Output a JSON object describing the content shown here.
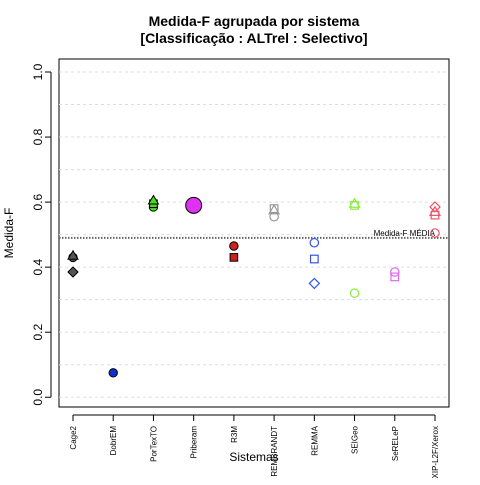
{
  "chart_data": {
    "type": "scatter",
    "title": "Medida-F agrupada por sistema",
    "subtitle": "[Classificação : ALTrel : Selectivo]",
    "xlabel": "Sistemas",
    "ylabel": "Medida-F",
    "ylim": [
      -0.03,
      1.04
    ],
    "yticks": [
      "0.0",
      "0.2",
      "0.4",
      "0.6",
      "0.8",
      "1.0"
    ],
    "grid": true,
    "categories": [
      "Cage2",
      "DobrEM",
      "PorTexTO",
      "Priberam",
      "R3M",
      "REMBRANDT",
      "REMMA",
      "SEIGeo",
      "SeRELeP",
      "XIP-L2F/Xerox"
    ],
    "reference_line": {
      "label": "Medida-F MÉDIA",
      "value": 0.49
    },
    "series": [
      {
        "category": "Cage2",
        "color": "#555555",
        "points": [
          {
            "y": 0.43,
            "shape": "circle",
            "filled": true
          },
          {
            "y": 0.435,
            "shape": "triangle",
            "filled": true
          },
          {
            "y": 0.385,
            "shape": "diamond",
            "filled": true
          }
        ]
      },
      {
        "category": "DobrEM",
        "color": "#1030c8",
        "points": [
          {
            "y": 0.075,
            "shape": "circle",
            "filled": true
          }
        ]
      },
      {
        "category": "PorTexTO",
        "color": "#44dd22",
        "points": [
          {
            "y": 0.585,
            "shape": "circle",
            "filled": true
          },
          {
            "y": 0.595,
            "shape": "square",
            "filled": true
          },
          {
            "y": 0.605,
            "shape": "triangle",
            "filled": true
          }
        ]
      },
      {
        "category": "Priberam",
        "color": "#dd33ee",
        "points": [
          {
            "y": 0.59,
            "shape": "circle",
            "filled": true,
            "size": "large"
          }
        ]
      },
      {
        "category": "R3M",
        "color": "#cc2222",
        "points": [
          {
            "y": 0.465,
            "shape": "circle",
            "filled": true
          },
          {
            "y": 0.43,
            "shape": "square",
            "filled": true
          }
        ]
      },
      {
        "category": "REMBRANDT",
        "color": "#999999",
        "points": [
          {
            "y": 0.555,
            "shape": "circle",
            "filled": false
          },
          {
            "y": 0.575,
            "shape": "triangle",
            "filled": false
          },
          {
            "y": 0.58,
            "shape": "square",
            "filled": false
          }
        ]
      },
      {
        "category": "REMMA",
        "color": "#3355ee",
        "points": [
          {
            "y": 0.475,
            "shape": "circle",
            "filled": false
          },
          {
            "y": 0.425,
            "shape": "square",
            "filled": false
          },
          {
            "y": 0.35,
            "shape": "diamond",
            "filled": false
          }
        ]
      },
      {
        "category": "SEIGeo",
        "color": "#88ee44",
        "points": [
          {
            "y": 0.595,
            "shape": "triangle",
            "filled": false
          },
          {
            "y": 0.59,
            "shape": "square",
            "filled": false
          },
          {
            "y": 0.32,
            "shape": "circle",
            "filled": false
          }
        ]
      },
      {
        "category": "SeRELeP",
        "color": "#dd66ee",
        "points": [
          {
            "y": 0.385,
            "shape": "circle",
            "filled": false
          },
          {
            "y": 0.37,
            "shape": "square",
            "filled": false
          }
        ]
      },
      {
        "category": "XIP-L2F/Xerox",
        "color": "#ee5566",
        "points": [
          {
            "y": 0.585,
            "shape": "diamond",
            "filled": false
          },
          {
            "y": 0.57,
            "shape": "triangle",
            "filled": false
          },
          {
            "y": 0.56,
            "shape": "square",
            "filled": false
          },
          {
            "y": 0.505,
            "shape": "circle",
            "filled": false
          }
        ]
      }
    ]
  }
}
